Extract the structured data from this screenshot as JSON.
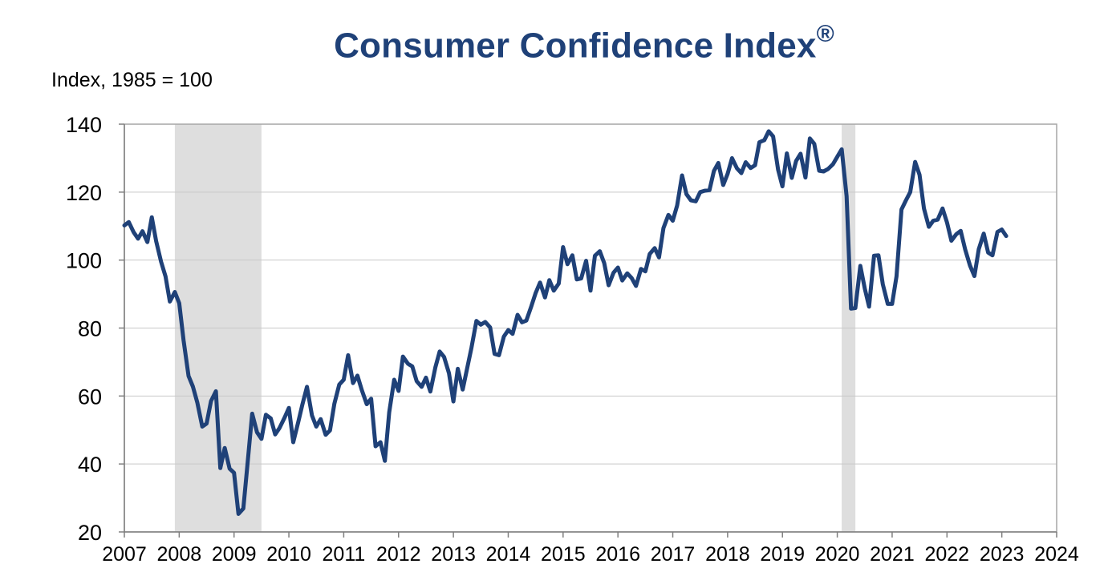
{
  "chart_data": {
    "type": "line",
    "title": "Consumer Confidence Index",
    "title_mark": "®",
    "ylabel": "Index, 1985 = 100",
    "xlabel": "",
    "xlim": [
      2007,
      2024
    ],
    "ylim": [
      20,
      140
    ],
    "y_ticks": [
      20,
      40,
      60,
      80,
      100,
      120,
      140
    ],
    "x_ticks": [
      2007,
      2008,
      2009,
      2010,
      2011,
      2012,
      2013,
      2014,
      2015,
      2016,
      2017,
      2018,
      2019,
      2020,
      2021,
      2022,
      2023,
      2024
    ],
    "grid": "horizontal",
    "legend": "none",
    "recessions": [
      [
        2007.92,
        2009.5
      ],
      [
        2020.08,
        2020.33
      ]
    ],
    "series": [
      {
        "color": "#1f4178",
        "x": [
          2007.0,
          2007.08,
          2007.17,
          2007.25,
          2007.33,
          2007.42,
          2007.5,
          2007.58,
          2007.67,
          2007.75,
          2007.83,
          2007.92,
          2008.0,
          2008.08,
          2008.17,
          2008.25,
          2008.33,
          2008.42,
          2008.5,
          2008.58,
          2008.67,
          2008.75,
          2008.83,
          2008.92,
          2009.0,
          2009.08,
          2009.17,
          2009.25,
          2009.33,
          2009.42,
          2009.5,
          2009.58,
          2009.67,
          2009.75,
          2009.83,
          2009.92,
          2010.0,
          2010.08,
          2010.17,
          2010.25,
          2010.33,
          2010.42,
          2010.5,
          2010.58,
          2010.67,
          2010.75,
          2010.83,
          2010.92,
          2011.0,
          2011.08,
          2011.17,
          2011.25,
          2011.33,
          2011.42,
          2011.5,
          2011.58,
          2011.67,
          2011.75,
          2011.83,
          2011.92,
          2012.0,
          2012.08,
          2012.17,
          2012.25,
          2012.33,
          2012.42,
          2012.5,
          2012.58,
          2012.67,
          2012.75,
          2012.83,
          2012.92,
          2013.0,
          2013.08,
          2013.17,
          2013.25,
          2013.33,
          2013.42,
          2013.5,
          2013.58,
          2013.67,
          2013.75,
          2013.83,
          2013.92,
          2014.0,
          2014.08,
          2014.17,
          2014.25,
          2014.33,
          2014.42,
          2014.5,
          2014.58,
          2014.67,
          2014.75,
          2014.83,
          2014.92,
          2015.0,
          2015.08,
          2015.17,
          2015.25,
          2015.33,
          2015.42,
          2015.5,
          2015.58,
          2015.67,
          2015.75,
          2015.83,
          2015.92,
          2016.0,
          2016.08,
          2016.17,
          2016.25,
          2016.33,
          2016.42,
          2016.5,
          2016.58,
          2016.67,
          2016.75,
          2016.83,
          2016.92,
          2017.0,
          2017.08,
          2017.17,
          2017.25,
          2017.33,
          2017.42,
          2017.5,
          2017.58,
          2017.67,
          2017.75,
          2017.83,
          2017.92,
          2018.0,
          2018.08,
          2018.17,
          2018.25,
          2018.33,
          2018.42,
          2018.5,
          2018.58,
          2018.67,
          2018.75,
          2018.83,
          2018.92,
          2019.0,
          2019.08,
          2019.17,
          2019.25,
          2019.33,
          2019.42,
          2019.5,
          2019.58,
          2019.67,
          2019.75,
          2019.83,
          2019.92,
          2020.0,
          2020.08,
          2020.17,
          2020.25,
          2020.33,
          2020.42,
          2020.5,
          2020.58,
          2020.67,
          2020.75,
          2020.83,
          2020.92,
          2021.0,
          2021.08,
          2021.17,
          2021.25,
          2021.33,
          2021.42,
          2021.5,
          2021.58,
          2021.67,
          2021.75,
          2021.83,
          2021.92,
          2022.0,
          2022.08,
          2022.17,
          2022.25,
          2022.33,
          2022.42,
          2022.5,
          2022.58,
          2022.67,
          2022.75,
          2022.83,
          2022.92,
          2023.0,
          2023.08
        ],
        "values": [
          110.2,
          111.2,
          108.2,
          106.3,
          108.5,
          105.3,
          112.6,
          105.6,
          99.5,
          95.2,
          87.8,
          90.6,
          87.3,
          76.4,
          65.9,
          62.8,
          58.1,
          51.0,
          51.9,
          58.5,
          61.4,
          38.8,
          44.7,
          38.6,
          37.4,
          25.3,
          26.9,
          40.8,
          54.8,
          49.3,
          47.4,
          54.5,
          53.4,
          48.7,
          50.6,
          53.6,
          56.5,
          46.4,
          52.3,
          57.7,
          62.7,
          54.3,
          51.0,
          53.2,
          48.6,
          49.9,
          57.8,
          63.4,
          64.8,
          72.0,
          63.8,
          66.0,
          61.7,
          57.6,
          59.2,
          45.2,
          46.4,
          40.9,
          55.2,
          64.8,
          61.5,
          71.6,
          69.5,
          68.7,
          64.4,
          62.7,
          65.4,
          61.3,
          68.4,
          73.1,
          71.5,
          66.7,
          58.4,
          68.0,
          61.9,
          68.1,
          74.3,
          82.1,
          81.0,
          81.8,
          80.2,
          72.4,
          72.0,
          77.5,
          79.4,
          78.3,
          83.9,
          81.7,
          82.2,
          86.4,
          90.3,
          93.4,
          89.0,
          94.1,
          91.0,
          93.1,
          103.8,
          98.8,
          101.4,
          94.3,
          94.6,
          99.8,
          91.0,
          101.3,
          102.6,
          99.1,
          92.6,
          96.3,
          97.8,
          94.0,
          96.1,
          94.7,
          92.4,
          97.4,
          96.7,
          101.8,
          103.5,
          100.8,
          109.4,
          113.3,
          111.6,
          116.1,
          124.9,
          119.4,
          117.6,
          117.3,
          120.0,
          120.4,
          120.6,
          126.2,
          128.6,
          122.1,
          125.4,
          130.0,
          127.0,
          125.6,
          128.8,
          127.1,
          127.9,
          134.7,
          135.3,
          137.9,
          136.4,
          126.6,
          121.7,
          131.4,
          124.2,
          129.2,
          131.3,
          124.3,
          135.8,
          134.2,
          126.3,
          126.1,
          126.8,
          128.2,
          130.4,
          132.6,
          118.8,
          85.7,
          85.9,
          98.3,
          91.7,
          86.3,
          101.3,
          101.4,
          92.9,
          87.1,
          87.1,
          95.2,
          114.9,
          117.5,
          120.0,
          128.9,
          125.1,
          115.2,
          109.8,
          111.6,
          111.9,
          115.2,
          111.1,
          105.7,
          107.6,
          108.6,
          103.2,
          98.4,
          95.3,
          103.2,
          107.8,
          102.2,
          101.4,
          108.3,
          109.0,
          107.1
        ]
      }
    ]
  }
}
